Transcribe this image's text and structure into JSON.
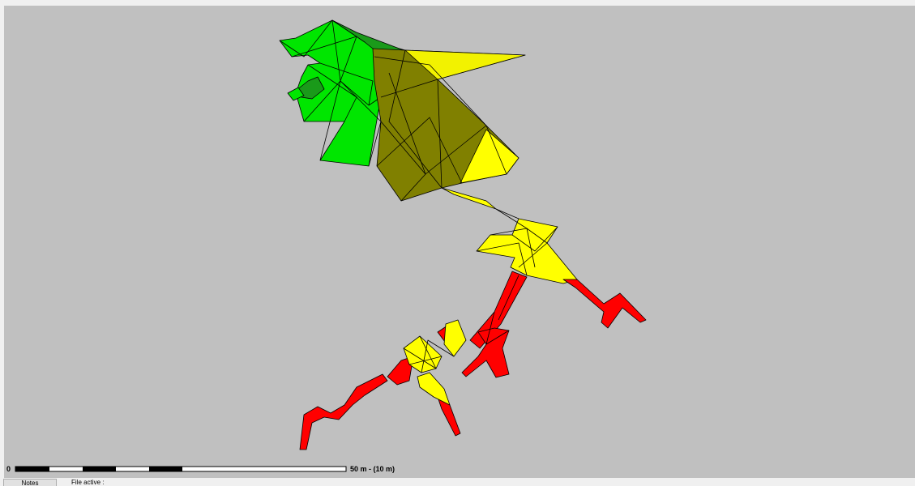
{
  "scale_bar": {
    "start_label": "0",
    "end_label": "50 m - (10 m)"
  },
  "statusbar": {
    "notes_label": "Notes",
    "file_status": "File active :"
  },
  "colors": {
    "background": "#c0c0c0",
    "green": "#00e600",
    "dark_green": "#1a9a1a",
    "olive": "#808000",
    "yellow": "#ffff00",
    "red": "#ff0000",
    "outline": "#000000"
  }
}
